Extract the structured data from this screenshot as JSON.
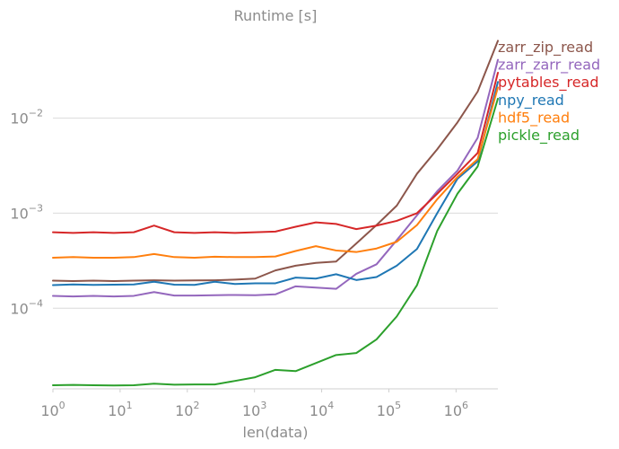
{
  "chart_data": {
    "type": "line",
    "title": "Runtime [s]",
    "xlabel": "len(data)",
    "ylabel": "",
    "xscale": "log",
    "yscale": "log",
    "grid": "y-major",
    "legend": "inline-right",
    "xlim": [
      1,
      4194304
    ],
    "ylim": [
      1.42e-05,
      0.095
    ],
    "x_ticks": [
      {
        "value": 1,
        "base": "10",
        "exp": "0"
      },
      {
        "value": 10,
        "base": "10",
        "exp": "1"
      },
      {
        "value": 100,
        "base": "10",
        "exp": "2"
      },
      {
        "value": 1000,
        "base": "10",
        "exp": "3"
      },
      {
        "value": 10000,
        "base": "10",
        "exp": "4"
      },
      {
        "value": 100000,
        "base": "10",
        "exp": "5"
      },
      {
        "value": 1000000,
        "base": "10",
        "exp": "6"
      }
    ],
    "y_ticks": [
      {
        "value": 0.0001,
        "base": "10",
        "exp": "−4"
      },
      {
        "value": 0.001,
        "base": "10",
        "exp": "−3"
      },
      {
        "value": 0.01,
        "base": "10",
        "exp": "−2"
      }
    ],
    "x": [
      1,
      2,
      4,
      8,
      16,
      32,
      64,
      128,
      256,
      512,
      1024,
      2048,
      4096,
      8192,
      16384,
      32768,
      65536,
      131072,
      262144,
      524288,
      1048576,
      2097152,
      4194304
    ],
    "series": [
      {
        "name": "zarr_zip_read",
        "color": "#8c564b",
        "values": [
          0.000195,
          0.000193,
          0.000195,
          0.000193,
          0.000195,
          0.000197,
          0.000195,
          0.000196,
          0.000197,
          0.0002,
          0.000205,
          0.00025,
          0.00028,
          0.0003,
          0.00031,
          0.00048,
          0.00075,
          0.0012,
          0.0026,
          0.0047,
          0.009,
          0.019,
          0.065
        ]
      },
      {
        "name": "zarr_zarr_read",
        "color": "#9467bd",
        "values": [
          0.000135,
          0.000133,
          0.000135,
          0.000133,
          0.000135,
          0.000148,
          0.000136,
          0.000136,
          0.000137,
          0.000138,
          0.000137,
          0.00014,
          0.00017,
          0.000165,
          0.00016,
          0.00023,
          0.00029,
          0.00052,
          0.00095,
          0.0017,
          0.0028,
          0.0062,
          0.041
        ]
      },
      {
        "name": "pytables_read",
        "color": "#d62728",
        "values": [
          0.00063,
          0.00062,
          0.00063,
          0.00062,
          0.00063,
          0.00074,
          0.00063,
          0.00062,
          0.00063,
          0.00062,
          0.00063,
          0.00064,
          0.00072,
          0.0008,
          0.00077,
          0.00068,
          0.00074,
          0.00083,
          0.001,
          0.0016,
          0.0026,
          0.0043,
          0.03
        ]
      },
      {
        "name": "npy_read",
        "color": "#1f77b4",
        "values": [
          0.000175,
          0.000178,
          0.000176,
          0.000177,
          0.000178,
          0.00019,
          0.000177,
          0.000176,
          0.00019,
          0.00018,
          0.000183,
          0.000183,
          0.00021,
          0.000205,
          0.000228,
          0.000198,
          0.000213,
          0.00028,
          0.00042,
          0.001,
          0.0023,
          0.0035,
          0.024
        ]
      },
      {
        "name": "hdf5_read",
        "color": "#ff7f0e",
        "values": [
          0.00034,
          0.000345,
          0.00034,
          0.00034,
          0.000345,
          0.000372,
          0.000345,
          0.00034,
          0.000348,
          0.000345,
          0.000345,
          0.00035,
          0.0004,
          0.00045,
          0.000405,
          0.00039,
          0.000425,
          0.0005,
          0.00075,
          0.0014,
          0.0024,
          0.0037,
          0.021
        ]
      },
      {
        "name": "pickle_read",
        "color": "#2ca02c",
        "values": [
          1.55e-05,
          1.56e-05,
          1.55e-05,
          1.54e-05,
          1.55e-05,
          1.61e-05,
          1.57e-05,
          1.58e-05,
          1.58e-05,
          1.72e-05,
          1.88e-05,
          2.25e-05,
          2.18e-05,
          2.65e-05,
          3.22e-05,
          3.38e-05,
          4.7e-05,
          8.2e-05,
          0.000175,
          0.00065,
          0.0016,
          0.0031,
          0.016
        ]
      }
    ]
  }
}
